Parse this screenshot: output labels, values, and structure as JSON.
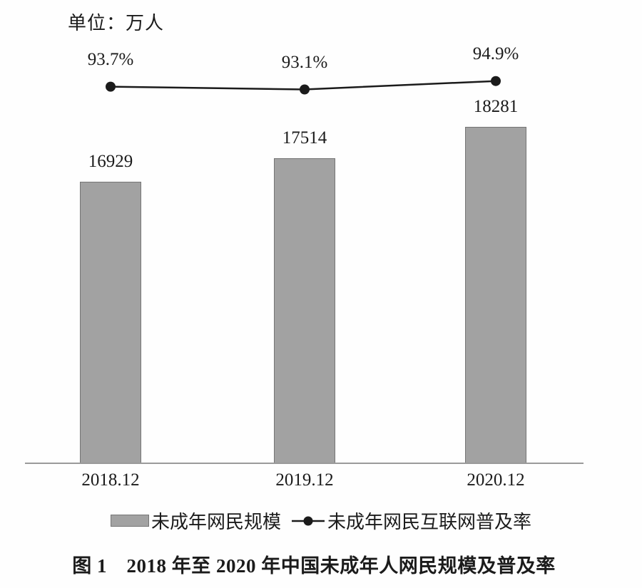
{
  "unit_label": "单位：万人",
  "caption": "图 1　2018 年至 2020 年中国未成年人网民规模及普及率",
  "legend": {
    "bar_label": "未成年网民规模",
    "line_label": "未成年网民互联网普及率"
  },
  "colors": {
    "bar_fill": "#a2a2a2",
    "bar_border": "#757575",
    "line": "#1b1b1b",
    "dot": "#1b1b1b",
    "axis": "#9a9a9a",
    "text": "#1b1b1b",
    "background": "#fefefe"
  },
  "chart_data": {
    "type": "combo",
    "categories": [
      "2018.12",
      "2019.12",
      "2020.12"
    ],
    "series": [
      {
        "name": "未成年网民规模",
        "type": "bar",
        "unit": "万人",
        "values": [
          16929,
          17514,
          18281
        ],
        "data_labels": [
          "16929",
          "17514",
          "18281"
        ]
      },
      {
        "name": "未成年网民互联网普及率",
        "type": "line",
        "unit": "%",
        "values": [
          93.7,
          93.1,
          94.9
        ],
        "data_labels": [
          "93.7%",
          "93.1%",
          "94.9%"
        ]
      }
    ],
    "title": "图 1　2018 年至 2020 年中国未成年人网民规模及普及率",
    "unit_note": "单位：万人",
    "xlabel": "",
    "ylabel": "单位：万人",
    "bar_ylim": [
      10000,
      21400
    ],
    "line_ylim": [
      88,
      100
    ],
    "grid": false,
    "legend_position": "bottom",
    "data_labels_shown": true
  }
}
